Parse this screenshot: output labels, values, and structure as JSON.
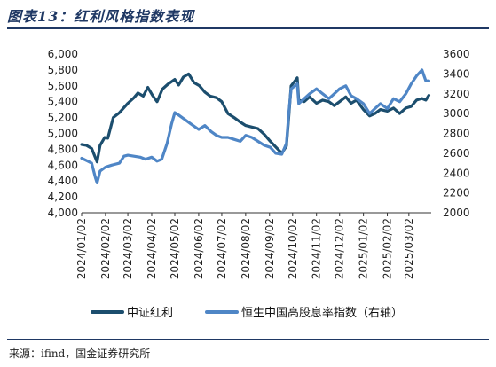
{
  "title": "图表13：红利风格指数表现",
  "source": "来源：ifind，国金证券研究所",
  "chart_data": {
    "type": "line",
    "x_tick_labels": [
      "2024/01/02",
      "2024/02/02",
      "2024/03/02",
      "2024/04/02",
      "2024/05/02",
      "2024/06/02",
      "2024/07/02",
      "2024/08/02",
      "2024/09/02",
      "2024/10/02",
      "2024/11/02",
      "2024/12/02",
      "2025/01/02",
      "2025/02/02",
      "2025/03/02"
    ],
    "y_left": {
      "ylim": [
        4000,
        6000
      ],
      "ticks": [
        4000,
        4200,
        4400,
        4600,
        4800,
        5000,
        5200,
        5400,
        5600,
        5800,
        6000
      ]
    },
    "y_right": {
      "ylim": [
        2000,
        3600
      ],
      "ticks": [
        2000,
        2200,
        2400,
        2600,
        2800,
        3000,
        3200,
        3400,
        3600
      ]
    },
    "legend_position": "bottom",
    "grid": false,
    "series": [
      {
        "name": "中证红利",
        "axis": "left",
        "color": "#1c4e6e",
        "points": [
          [
            "2024/01/02",
            4860
          ],
          [
            "2024/01/08",
            4850
          ],
          [
            "2024/01/15",
            4810
          ],
          [
            "2024/01/22",
            4640
          ],
          [
            "2024/01/26",
            4850
          ],
          [
            "2024/02/01",
            4950
          ],
          [
            "2024/02/05",
            4940
          ],
          [
            "2024/02/12",
            5200
          ],
          [
            "2024/02/20",
            5260
          ],
          [
            "2024/03/02",
            5380
          ],
          [
            "2024/03/10",
            5450
          ],
          [
            "2024/03/15",
            5510
          ],
          [
            "2024/03/22",
            5470
          ],
          [
            "2024/03/28",
            5580
          ],
          [
            "2024/04/03",
            5480
          ],
          [
            "2024/04/09",
            5400
          ],
          [
            "2024/04/16",
            5560
          ],
          [
            "2024/04/23",
            5620
          ],
          [
            "2024/05/02",
            5680
          ],
          [
            "2024/05/07",
            5610
          ],
          [
            "2024/05/13",
            5710
          ],
          [
            "2024/05/20",
            5750
          ],
          [
            "2024/05/27",
            5640
          ],
          [
            "2024/06/03",
            5600
          ],
          [
            "2024/06/10",
            5520
          ],
          [
            "2024/06/17",
            5470
          ],
          [
            "2024/06/25",
            5450
          ],
          [
            "2024/07/02",
            5400
          ],
          [
            "2024/07/10",
            5250
          ],
          [
            "2024/07/18",
            5200
          ],
          [
            "2024/07/25",
            5150
          ],
          [
            "2024/08/02",
            5100
          ],
          [
            "2024/08/10",
            5080
          ],
          [
            "2024/08/18",
            5060
          ],
          [
            "2024/08/26",
            4990
          ],
          [
            "2024/09/03",
            4900
          ],
          [
            "2024/09/10",
            4830
          ],
          [
            "2024/09/18",
            4750
          ],
          [
            "2024/09/24",
            4840
          ],
          [
            "2024/09/27",
            5200
          ],
          [
            "2024/09/30",
            5600
          ],
          [
            "2024/10/08",
            5700
          ],
          [
            "2024/10/10",
            5420
          ],
          [
            "2024/10/17",
            5400
          ],
          [
            "2024/10/24",
            5460
          ],
          [
            "2024/11/02",
            5380
          ],
          [
            "2024/11/10",
            5420
          ],
          [
            "2024/11/18",
            5400
          ],
          [
            "2024/11/25",
            5350
          ],
          [
            "2024/12/02",
            5400
          ],
          [
            "2024/12/10",
            5460
          ],
          [
            "2024/12/17",
            5380
          ],
          [
            "2024/12/24",
            5420
          ],
          [
            "2025/01/02",
            5300
          ],
          [
            "2025/01/10",
            5220
          ],
          [
            "2025/01/17",
            5250
          ],
          [
            "2025/01/24",
            5300
          ],
          [
            "2025/02/02",
            5280
          ],
          [
            "2025/02/10",
            5320
          ],
          [
            "2025/02/18",
            5250
          ],
          [
            "2025/02/26",
            5320
          ],
          [
            "2025/03/05",
            5340
          ],
          [
            "2025/03/12",
            5420
          ],
          [
            "2025/03/19",
            5440
          ],
          [
            "2025/03/24",
            5420
          ],
          [
            "2025/03/28",
            5480
          ]
        ]
      },
      {
        "name": "恒生中国高股息率指数（右轴）",
        "axis": "right",
        "color": "#4f86c6",
        "points": [
          [
            "2024/01/02",
            2550
          ],
          [
            "2024/01/10",
            2520
          ],
          [
            "2024/01/15",
            2500
          ],
          [
            "2024/01/20",
            2350
          ],
          [
            "2024/01/22",
            2300
          ],
          [
            "2024/01/26",
            2420
          ],
          [
            "2024/02/02",
            2460
          ],
          [
            "2024/02/10",
            2480
          ],
          [
            "2024/02/20",
            2500
          ],
          [
            "2024/02/26",
            2570
          ],
          [
            "2024/03/02",
            2580
          ],
          [
            "2024/03/10",
            2570
          ],
          [
            "2024/03/18",
            2560
          ],
          [
            "2024/03/25",
            2540
          ],
          [
            "2024/04/02",
            2560
          ],
          [
            "2024/04/09",
            2520
          ],
          [
            "2024/04/15",
            2540
          ],
          [
            "2024/04/22",
            2700
          ],
          [
            "2024/04/28",
            2900
          ],
          [
            "2024/05/02",
            3010
          ],
          [
            "2024/05/08",
            2980
          ],
          [
            "2024/05/15",
            2940
          ],
          [
            "2024/05/22",
            2900
          ],
          [
            "2024/06/02",
            2840
          ],
          [
            "2024/06/10",
            2880
          ],
          [
            "2024/06/18",
            2820
          ],
          [
            "2024/06/25",
            2780
          ],
          [
            "2024/07/02",
            2760
          ],
          [
            "2024/07/10",
            2760
          ],
          [
            "2024/07/18",
            2740
          ],
          [
            "2024/07/26",
            2720
          ],
          [
            "2024/08/02",
            2780
          ],
          [
            "2024/08/10",
            2760
          ],
          [
            "2024/08/18",
            2720
          ],
          [
            "2024/08/26",
            2680
          ],
          [
            "2024/09/03",
            2660
          ],
          [
            "2024/09/10",
            2600
          ],
          [
            "2024/09/18",
            2590
          ],
          [
            "2024/09/24",
            2700
          ],
          [
            "2024/09/27",
            3000
          ],
          [
            "2024/09/30",
            3250
          ],
          [
            "2024/10/08",
            3300
          ],
          [
            "2024/10/10",
            3100
          ],
          [
            "2024/10/17",
            3150
          ],
          [
            "2024/10/24",
            3200
          ],
          [
            "2024/11/02",
            3250
          ],
          [
            "2024/11/10",
            3200
          ],
          [
            "2024/11/18",
            3150
          ],
          [
            "2024/11/25",
            3200
          ],
          [
            "2024/12/02",
            3250
          ],
          [
            "2024/12/10",
            3280
          ],
          [
            "2024/12/17",
            3180
          ],
          [
            "2024/12/24",
            3150
          ],
          [
            "2025/01/02",
            3100
          ],
          [
            "2025/01/10",
            3000
          ],
          [
            "2025/01/17",
            3050
          ],
          [
            "2025/01/24",
            3100
          ],
          [
            "2025/02/02",
            3050
          ],
          [
            "2025/02/10",
            3150
          ],
          [
            "2025/02/18",
            3120
          ],
          [
            "2025/02/26",
            3200
          ],
          [
            "2025/03/05",
            3300
          ],
          [
            "2025/03/12",
            3380
          ],
          [
            "2025/03/19",
            3440
          ],
          [
            "2025/03/24",
            3330
          ],
          [
            "2025/03/28",
            3330
          ]
        ]
      }
    ]
  }
}
